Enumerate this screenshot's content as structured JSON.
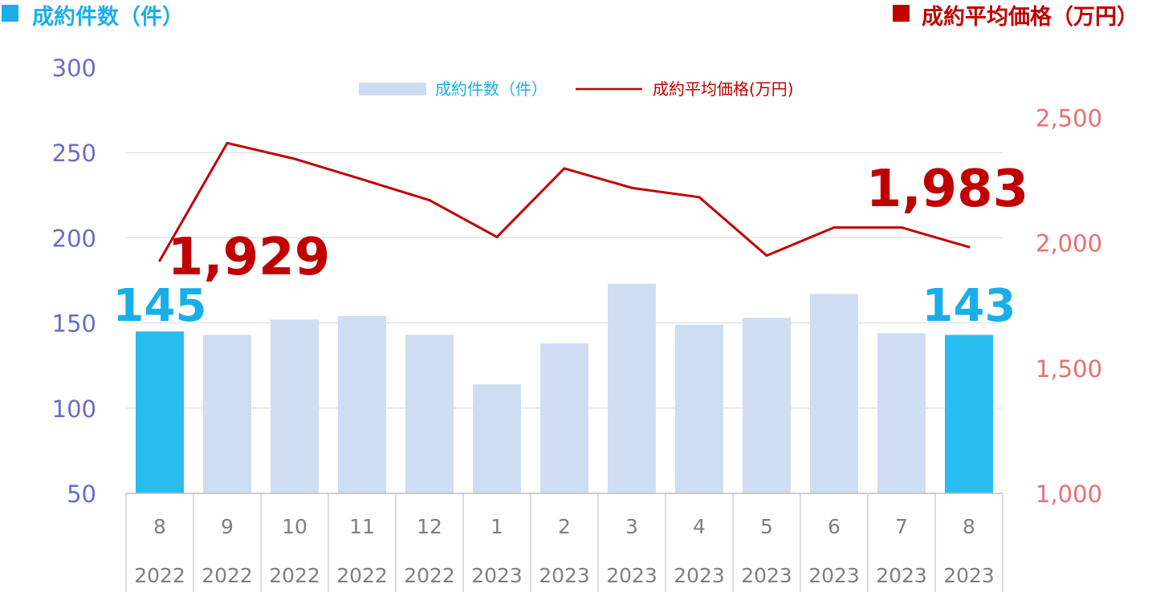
{
  "header": {
    "left_label": "成約件数（件）",
    "right_label": "成約平均価格（万円）"
  },
  "colors": {
    "count_header": "#1AAEE8",
    "price_header": "#C00000",
    "bar_normal": "#CFDDF2",
    "bar_highlight": "#29BDEF",
    "line": "#C00000",
    "left_axis": "#6B6BC8",
    "right_axis": "#E87070"
  },
  "chart_data": {
    "type": "bar",
    "categories": [
      {
        "month": "8",
        "year": "2022"
      },
      {
        "month": "9",
        "year": "2022"
      },
      {
        "month": "10",
        "year": "2022"
      },
      {
        "month": "11",
        "year": "2022"
      },
      {
        "month": "12",
        "year": "2022"
      },
      {
        "month": "1",
        "year": "2023"
      },
      {
        "month": "2",
        "year": "2023"
      },
      {
        "month": "3",
        "year": "2023"
      },
      {
        "month": "4",
        "year": "2023"
      },
      {
        "month": "5",
        "year": "2023"
      },
      {
        "month": "6",
        "year": "2023"
      },
      {
        "month": "7",
        "year": "2023"
      },
      {
        "month": "8",
        "year": "2023"
      }
    ],
    "series": [
      {
        "name": "成約件数（件）",
        "type": "bar",
        "axis": "left",
        "values": [
          145,
          143,
          152,
          154,
          143,
          114,
          138,
          173,
          149,
          153,
          167,
          144,
          143
        ],
        "highlight": [
          0,
          12
        ]
      },
      {
        "name": "成約平均価格(万円)",
        "type": "line",
        "axis": "right",
        "values": [
          1929,
          2398,
          2335,
          2253,
          2170,
          2023,
          2297,
          2219,
          2182,
          1949,
          2061,
          2061,
          1983
        ]
      }
    ],
    "left_axis": {
      "ylim": [
        50,
        300
      ],
      "ticks": [
        50,
        100,
        150,
        200,
        250,
        300
      ]
    },
    "right_axis": {
      "ylim": [
        1000,
        2700
      ],
      "ticks": [
        "1,000",
        "1,500",
        "2,000",
        "2,500"
      ],
      "tick_values": [
        1000,
        1500,
        2000,
        2500
      ]
    },
    "grid": true,
    "legend_position": "top-center",
    "annotations": {
      "first_count": "145",
      "last_count": "143",
      "first_price": "1,929",
      "last_price": "1,983"
    }
  }
}
